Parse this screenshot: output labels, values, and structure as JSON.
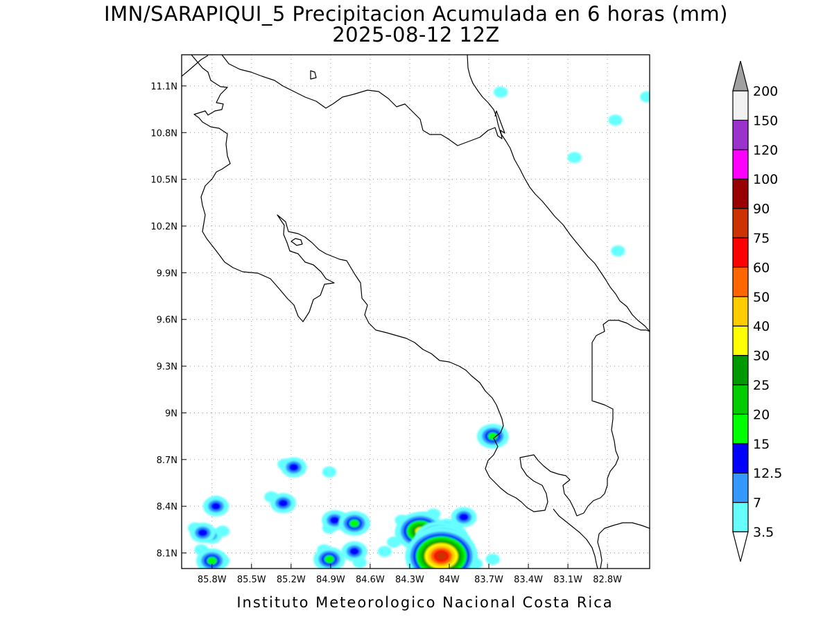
{
  "title": {
    "line1": "IMN/SARAPIQUI_5 Precipitacion Acumulada en 6 horas (mm)",
    "line2": "2025-08-12 12Z"
  },
  "footer": "Instituto Meteorologico Nacional Costa Rica",
  "map": {
    "lon_range": [
      -86.03,
      -82.48
    ],
    "lat_range": [
      8.0,
      11.3
    ],
    "lat_ticks": [
      {
        "value": 11.1,
        "label": "11.1N"
      },
      {
        "value": 10.8,
        "label": "10.8N"
      },
      {
        "value": 10.5,
        "label": "10.5N"
      },
      {
        "value": 10.2,
        "label": "10.2N"
      },
      {
        "value": 9.9,
        "label": "9.9N"
      },
      {
        "value": 9.6,
        "label": "9.6N"
      },
      {
        "value": 9.3,
        "label": "9.3N"
      },
      {
        "value": 9.0,
        "label": "9N"
      },
      {
        "value": 8.7,
        "label": "8.7N"
      },
      {
        "value": 8.4,
        "label": "8.4N"
      },
      {
        "value": 8.1,
        "label": "8.1N"
      }
    ],
    "lon_ticks": [
      {
        "value": -85.8,
        "label": "85.8W"
      },
      {
        "value": -85.5,
        "label": "85.5W"
      },
      {
        "value": -85.2,
        "label": "85.2W"
      },
      {
        "value": -84.9,
        "label": "84.9W"
      },
      {
        "value": -84.6,
        "label": "84.6W"
      },
      {
        "value": -84.3,
        "label": "84.3W"
      },
      {
        "value": -84.0,
        "label": "84W"
      },
      {
        "value": -83.7,
        "label": "83.7W"
      },
      {
        "value": -83.4,
        "label": "83.4W"
      },
      {
        "value": -83.1,
        "label": "83.1W"
      },
      {
        "value": -82.8,
        "label": "82.8W"
      }
    ],
    "grid": true,
    "precip_cells": [
      {
        "lon": -85.77,
        "lat": 8.4,
        "level": 3
      },
      {
        "lon": -85.77,
        "lat": 8.43,
        "level": 1
      },
      {
        "lon": -85.87,
        "lat": 8.23,
        "level": 3
      },
      {
        "lon": -85.8,
        "lat": 8.21,
        "level": 2
      },
      {
        "lon": -85.93,
        "lat": 8.26,
        "level": 1
      },
      {
        "lon": -85.72,
        "lat": 8.24,
        "level": 1
      },
      {
        "lon": -85.8,
        "lat": 8.05,
        "level": 4
      },
      {
        "lon": -85.72,
        "lat": 8.05,
        "level": 1
      },
      {
        "lon": -85.88,
        "lat": 8.12,
        "level": 1
      },
      {
        "lon": -85.18,
        "lat": 8.65,
        "level": 3
      },
      {
        "lon": -85.25,
        "lat": 8.67,
        "level": 1
      },
      {
        "lon": -84.91,
        "lat": 8.62,
        "level": 1
      },
      {
        "lon": -85.35,
        "lat": 8.46,
        "level": 1
      },
      {
        "lon": -85.26,
        "lat": 8.42,
        "level": 3
      },
      {
        "lon": -84.87,
        "lat": 8.31,
        "level": 3
      },
      {
        "lon": -84.91,
        "lat": 8.26,
        "level": 1
      },
      {
        "lon": -84.83,
        "lat": 8.33,
        "level": 1
      },
      {
        "lon": -84.72,
        "lat": 8.29,
        "level": 4
      },
      {
        "lon": -84.66,
        "lat": 8.29,
        "level": 1
      },
      {
        "lon": -84.91,
        "lat": 8.06,
        "level": 4
      },
      {
        "lon": -84.95,
        "lat": 8.12,
        "level": 1
      },
      {
        "lon": -84.72,
        "lat": 8.11,
        "level": 3
      },
      {
        "lon": -84.68,
        "lat": 8.04,
        "level": 1
      },
      {
        "lon": -84.49,
        "lat": 8.11,
        "level": 1
      },
      {
        "lon": -84.42,
        "lat": 8.17,
        "level": 1
      },
      {
        "lon": -84.36,
        "lat": 8.31,
        "level": 1
      },
      {
        "lon": -84.22,
        "lat": 8.24,
        "level": 7
      },
      {
        "lon": -84.27,
        "lat": 8.23,
        "level": 5
      },
      {
        "lon": -84.3,
        "lat": 8.28,
        "level": 2
      },
      {
        "lon": -84.19,
        "lat": 8.3,
        "level": 3
      },
      {
        "lon": -84.08,
        "lat": 8.18,
        "level": 7
      },
      {
        "lon": -84.05,
        "lat": 8.13,
        "level": 9
      },
      {
        "lon": -84.06,
        "lat": 8.08,
        "level": 11
      },
      {
        "lon": -84.0,
        "lat": 8.2,
        "level": 5
      },
      {
        "lon": -83.95,
        "lat": 8.1,
        "level": 4
      },
      {
        "lon": -84.02,
        "lat": 8.27,
        "level": 2
      },
      {
        "lon": -84.12,
        "lat": 8.35,
        "level": 1
      },
      {
        "lon": -84.1,
        "lat": 8.06,
        "level": 3
      },
      {
        "lon": -83.89,
        "lat": 8.33,
        "level": 3
      },
      {
        "lon": -83.94,
        "lat": 8.29,
        "level": 1
      },
      {
        "lon": -83.86,
        "lat": 8.06,
        "level": 2
      },
      {
        "lon": -83.8,
        "lat": 8.03,
        "level": 1
      },
      {
        "lon": -83.67,
        "lat": 8.06,
        "level": 1
      },
      {
        "lon": -83.67,
        "lat": 8.85,
        "level": 4
      },
      {
        "lon": -83.61,
        "lat": 11.06,
        "level": 1
      },
      {
        "lon": -82.74,
        "lat": 10.88,
        "level": 1
      },
      {
        "lon": -83.05,
        "lat": 10.64,
        "level": 1
      },
      {
        "lon": -82.72,
        "lat": 10.04,
        "level": 1
      },
      {
        "lon": -82.5,
        "lat": 11.03,
        "level": 1
      }
    ]
  },
  "colorbar": {
    "bounds": [
      "3.5",
      "7",
      "12.5",
      "15",
      "20",
      "25",
      "30",
      "40",
      "50",
      "60",
      "75",
      "90",
      "100",
      "120",
      "150",
      "200"
    ],
    "colors": [
      "#66ffff",
      "#3399ff",
      "#0000ff",
      "#00ff00",
      "#00cc00",
      "#009900",
      "#ffff00",
      "#ffcc00",
      "#ff6600",
      "#ff0000",
      "#cc3300",
      "#990000",
      "#ff00ff",
      "#9933cc",
      "#f2f2f2"
    ],
    "over_color": "#a0a0a0",
    "under_color": "#ffffff"
  }
}
